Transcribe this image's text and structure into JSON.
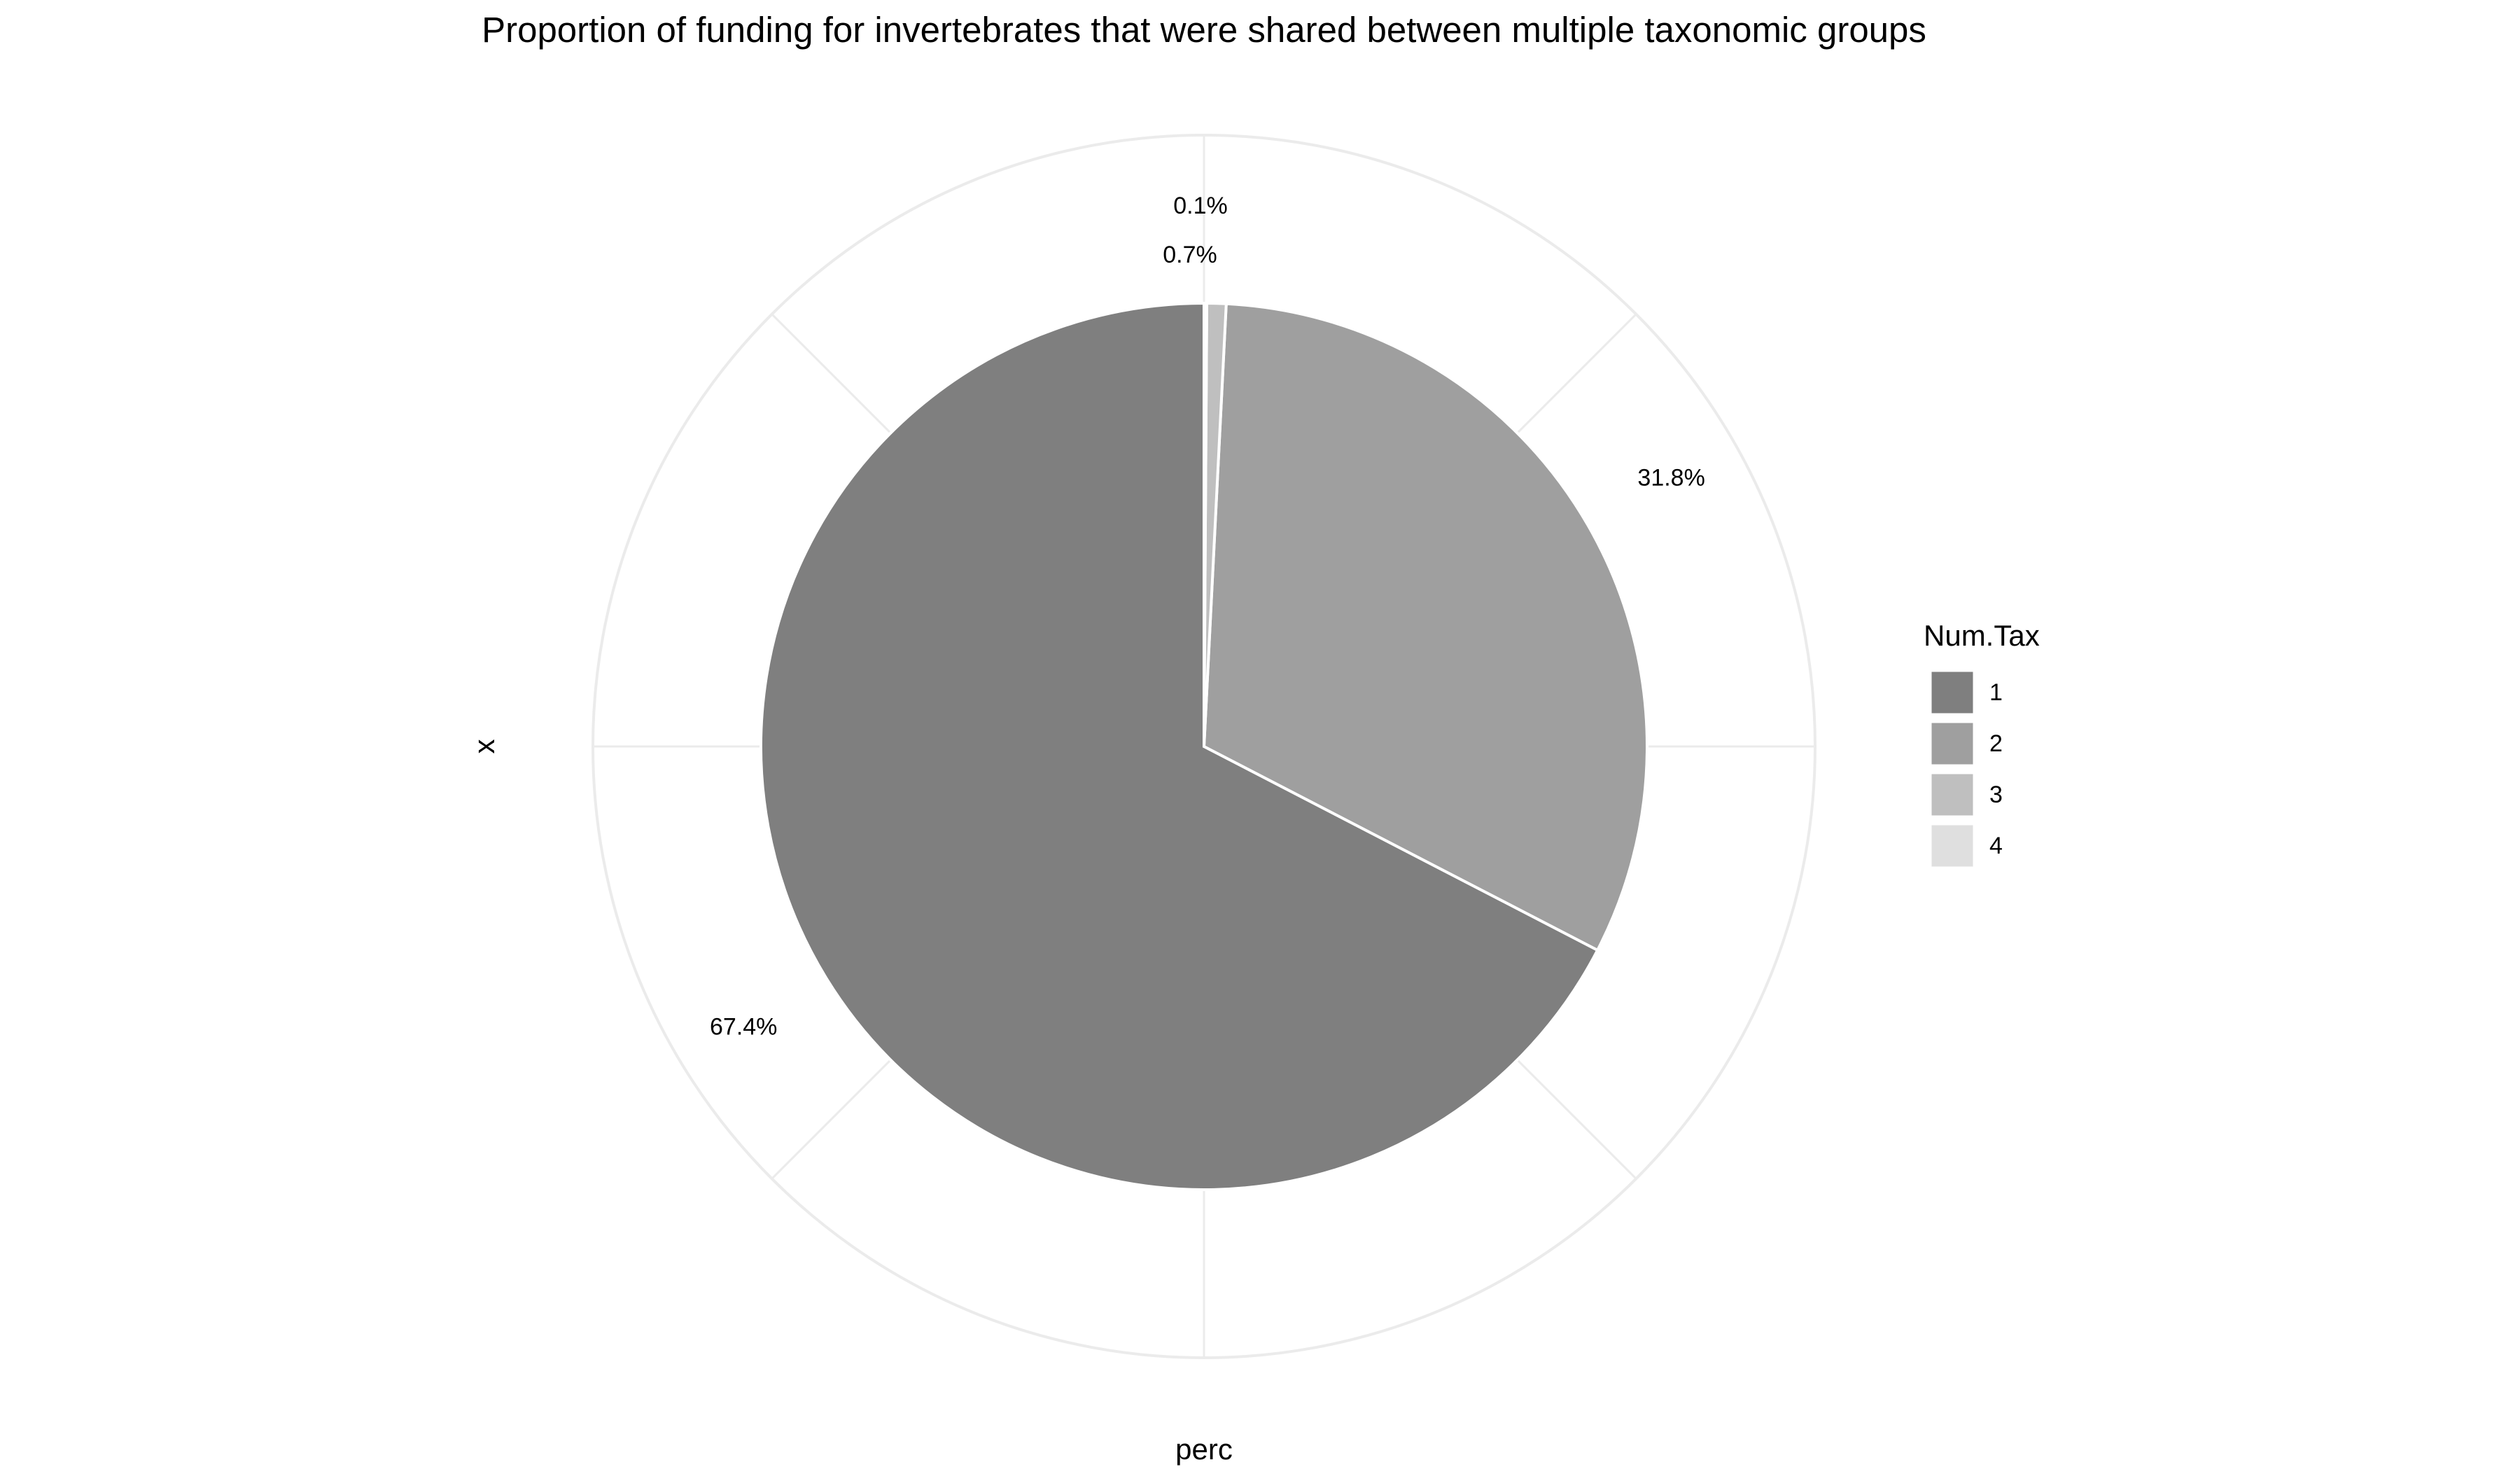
{
  "chart_data": {
    "type": "pie",
    "title": "Proportion of funding for invertebrates that were shared between multiple taxonomic groups",
    "xlabel": "perc",
    "ylabel": "x",
    "grid": true,
    "legend": {
      "title": "Num.Tax",
      "position": "right"
    },
    "categories": [
      "1",
      "2",
      "3",
      "4"
    ],
    "values": [
      67.4,
      31.8,
      0.7,
      0.1
    ],
    "labels": [
      "67.4%",
      "31.8%",
      "0.7%",
      "0.1%"
    ],
    "colors": [
      "#7f7f7f",
      "#9f9f9f",
      "#bfbfbf",
      "#dfdfdf"
    ],
    "grid_color": "#ebebeb"
  }
}
